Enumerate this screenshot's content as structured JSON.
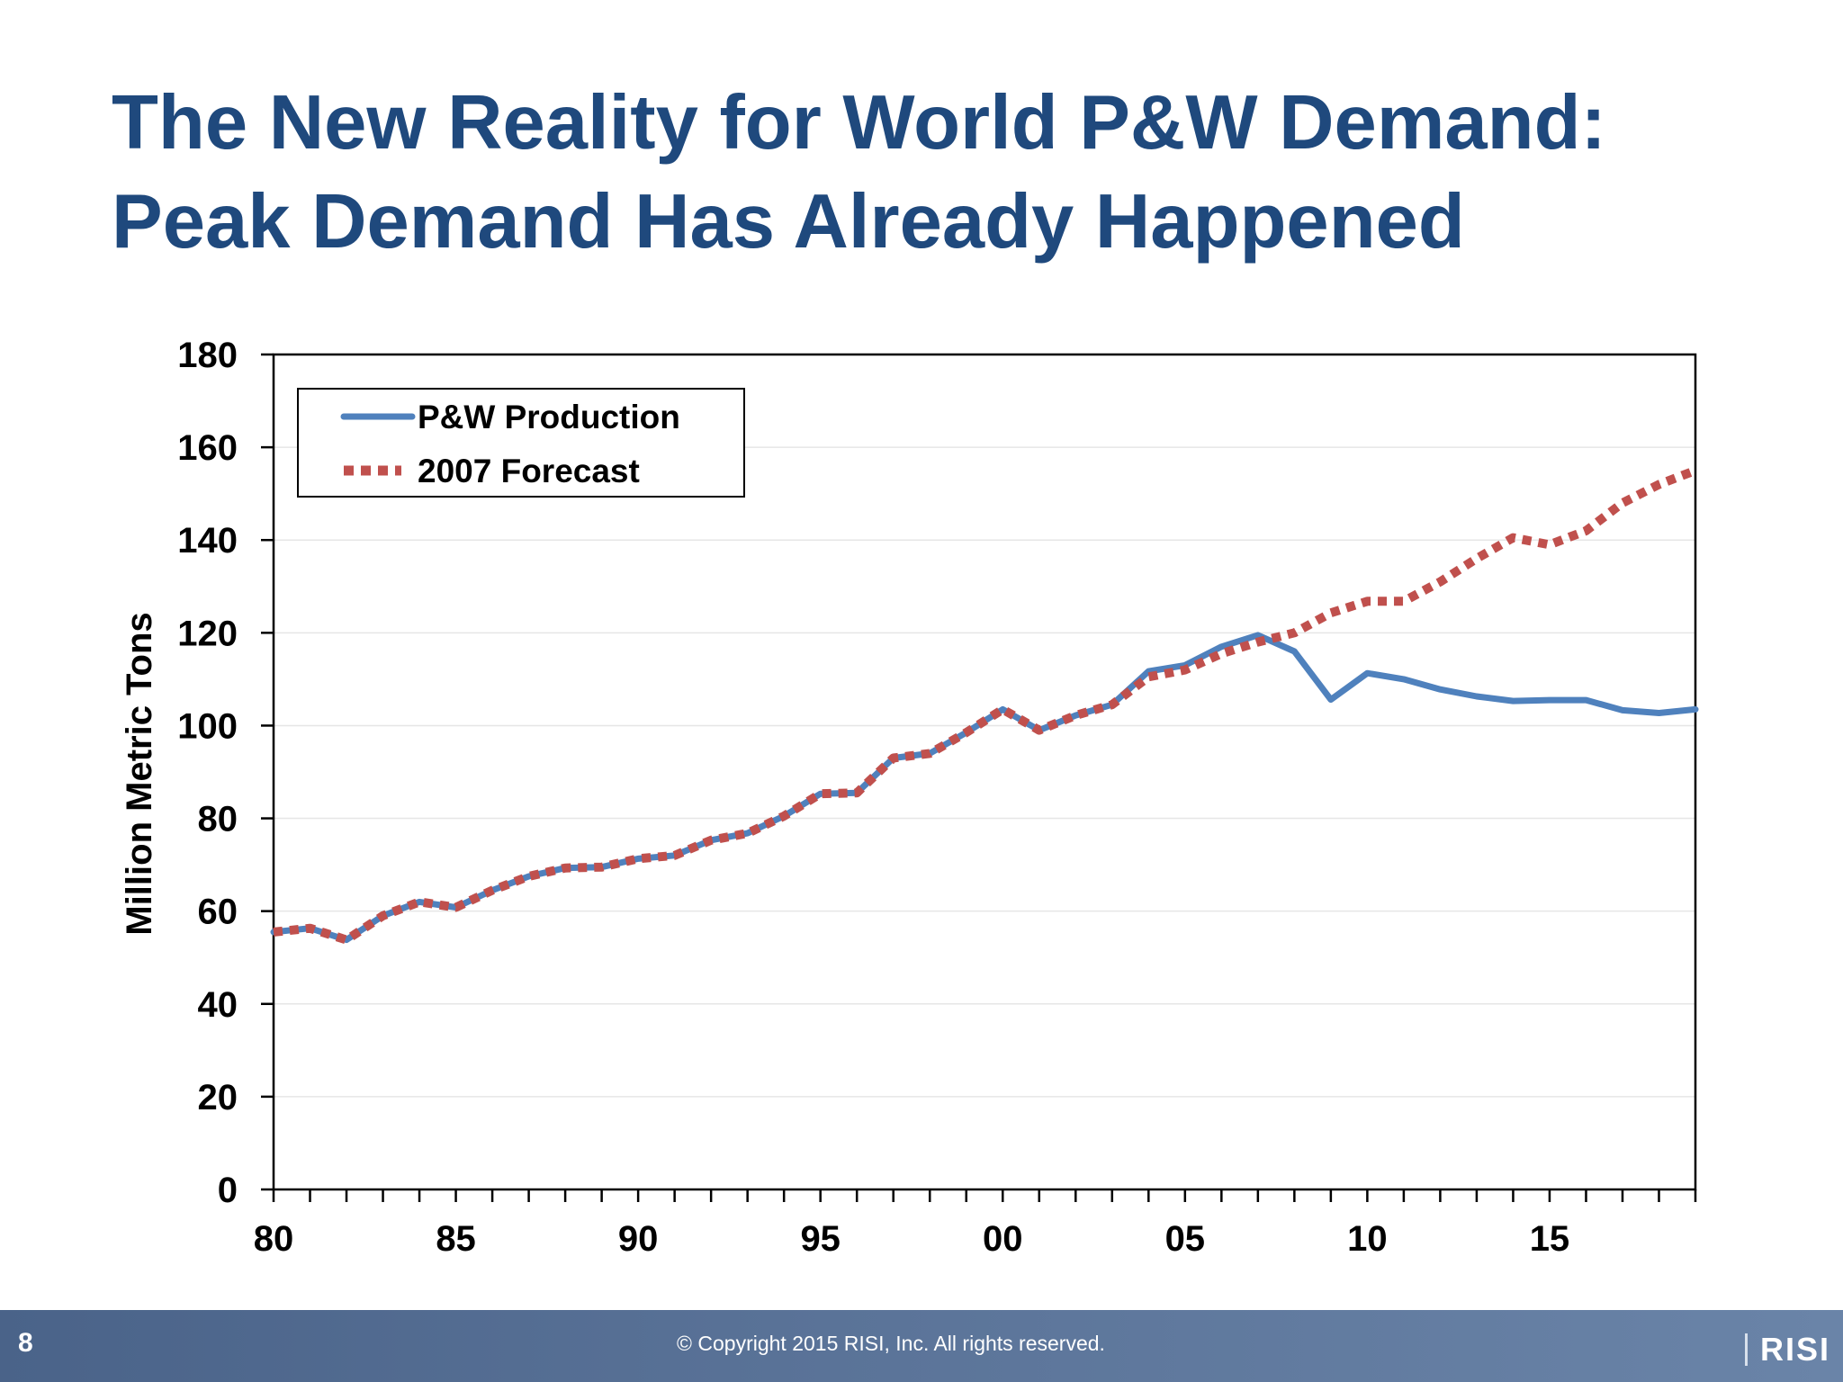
{
  "slide": {
    "title_line1": "The New Reality for World P&W Demand:",
    "title_line2": "Peak Demand Has Already Happened"
  },
  "footer": {
    "page_number": "8",
    "copyright": "© Copyright 2015 RISI, Inc. All rights reserved.",
    "logo_text": "RISI"
  },
  "colors": {
    "title": "#1f497d",
    "production": "#4f81bd",
    "forecast": "#c0504d"
  },
  "chart_data": {
    "type": "line",
    "title": "",
    "xlabel": "",
    "ylabel": "Million Metric Tons",
    "ylim": [
      0,
      180
    ],
    "yticks": [
      0,
      20,
      40,
      60,
      80,
      100,
      120,
      140,
      160,
      180
    ],
    "xlim": [
      1980,
      2019
    ],
    "xtick_labels": [
      {
        "year": 1980,
        "label": "80"
      },
      {
        "year": 1985,
        "label": "85"
      },
      {
        "year": 1990,
        "label": "90"
      },
      {
        "year": 1995,
        "label": "95"
      },
      {
        "year": 2000,
        "label": "00"
      },
      {
        "year": 2005,
        "label": "05"
      },
      {
        "year": 2010,
        "label": "10"
      },
      {
        "year": 2015,
        "label": "15"
      }
    ],
    "grid": true,
    "legend": "top-left",
    "series": [
      {
        "name": "P&W Production",
        "style": "solid",
        "x": [
          1980,
          1981,
          1982,
          1983,
          1984,
          1985,
          1986,
          1987,
          1988,
          1989,
          1990,
          1991,
          1992,
          1993,
          1994,
          1995,
          1996,
          1997,
          1998,
          1999,
          2000,
          2001,
          2002,
          2003,
          2004,
          2005,
          2006,
          2007,
          2008,
          2009,
          2010,
          2011,
          2012,
          2013,
          2014,
          2015,
          2016,
          2017,
          2018,
          2019
        ],
        "values": [
          55.5,
          56.3,
          53.8,
          59,
          62,
          60.8,
          64.5,
          67.5,
          69.3,
          69.5,
          71.3,
          72,
          75.3,
          76.8,
          80.5,
          85.3,
          85.5,
          93,
          94,
          98.5,
          103.5,
          99,
          102.2,
          104.5,
          111.7,
          113,
          117,
          119.5,
          116,
          105.6,
          111.3,
          110,
          107.8,
          106.3,
          105.3,
          105.5,
          105.5,
          103.3,
          102.7,
          103.5
        ]
      },
      {
        "name": "2007 Forecast",
        "style": "dotted",
        "x": [
          1980,
          1981,
          1982,
          1983,
          1984,
          1985,
          1986,
          1987,
          1988,
          1989,
          1990,
          1991,
          1992,
          1993,
          1994,
          1995,
          1996,
          1997,
          1998,
          1999,
          2000,
          2001,
          2002,
          2003,
          2004,
          2005,
          2006,
          2007,
          2008,
          2009,
          2010,
          2011,
          2012,
          2013,
          2014,
          2015,
          2016,
          2017,
          2018,
          2019
        ],
        "values": [
          55.5,
          56.3,
          53.8,
          59,
          62,
          60.8,
          64.5,
          67.5,
          69.3,
          69.5,
          71.3,
          72,
          75.3,
          76.8,
          80.5,
          85.3,
          85.5,
          93,
          94,
          98.5,
          103.5,
          99,
          102.2,
          104.5,
          110.5,
          112,
          115.5,
          118,
          120,
          124.3,
          126.8,
          126.8,
          131,
          136,
          140.5,
          139,
          142,
          148,
          152,
          155
        ]
      }
    ]
  }
}
